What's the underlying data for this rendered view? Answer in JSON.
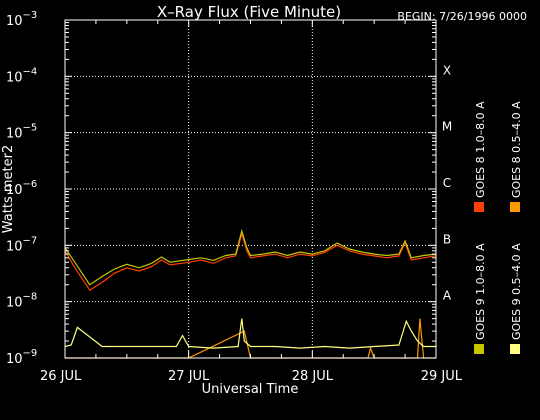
{
  "chart_data": {
    "type": "line",
    "title": "X–Ray Flux (Five Minute)",
    "begin_label": "BEGIN: 7/26/1996 0000",
    "xlabel": "Universal Time",
    "ylabel": "Watts meter2",
    "y_scale": "log",
    "ylim": [
      1e-09,
      0.001
    ],
    "y_ticks": [
      {
        "base": "10",
        "exp": "−9"
      },
      {
        "base": "10",
        "exp": "−8"
      },
      {
        "base": "10",
        "exp": "−7"
      },
      {
        "base": "10",
        "exp": "−6"
      },
      {
        "base": "10",
        "exp": "−5"
      },
      {
        "base": "10",
        "exp": "−4"
      },
      {
        "base": "10",
        "exp": "−3"
      }
    ],
    "x_ticks": [
      "26 JUL",
      "27 JUL",
      "28 JUL",
      "29 JUL"
    ],
    "x_range_days": [
      0,
      3
    ],
    "flare_classes": [
      {
        "label": "A",
        "value": 1e-08
      },
      {
        "label": "B",
        "value": 1e-07
      },
      {
        "label": "C",
        "value": 1e-06
      },
      {
        "label": "M",
        "value": 1e-05
      },
      {
        "label": "X",
        "value": 0.0001
      }
    ],
    "grid": true,
    "legend_position": "right, rotated vertical",
    "series": [
      {
        "name": "GOES 8 1.0–8.0 A",
        "color": "#ff4000",
        "x": [
          0,
          0.08,
          0.2,
          0.3,
          0.4,
          0.5,
          0.6,
          0.7,
          0.78,
          0.85,
          1.0,
          1.1,
          1.2,
          1.3,
          1.38,
          1.43,
          1.47,
          1.5,
          1.6,
          1.7,
          1.8,
          1.9,
          2.0,
          2.1,
          2.2,
          2.3,
          2.4,
          2.5,
          2.6,
          2.7,
          2.75,
          2.8,
          2.9,
          3.0
        ],
        "y": [
          8e-08,
          4e-08,
          1.6e-08,
          2.2e-08,
          3.2e-08,
          4e-08,
          3.5e-08,
          4.2e-08,
          5.5e-08,
          4.5e-08,
          5e-08,
          5.5e-08,
          4.8e-08,
          6e-08,
          6.5e-08,
          1.6e-07,
          8e-08,
          6e-08,
          6.5e-08,
          7e-08,
          6e-08,
          7e-08,
          6.5e-08,
          7.5e-08,
          1e-07,
          8e-08,
          7e-08,
          6.5e-08,
          6e-08,
          6.5e-08,
          1.1e-07,
          5.5e-08,
          6e-08,
          6.5e-08
        ]
      },
      {
        "name": "GOES 8 0.5–4.0 A",
        "color": "#ff9900",
        "x": [
          0,
          0.5,
          1.0,
          1.45,
          1.5,
          2.45,
          2.47,
          2.5,
          2.85,
          2.87,
          2.9,
          3.0
        ],
        "y": [
          1e-09,
          1e-09,
          1e-09,
          3e-09,
          1e-09,
          1e-09,
          1.5e-09,
          1e-09,
          1e-09,
          5e-09,
          1e-09,
          1e-09
        ]
      },
      {
        "name": "GOES 9 1.0–8.0 A",
        "color": "#c8c800",
        "x": [
          0,
          0.08,
          0.2,
          0.3,
          0.4,
          0.5,
          0.6,
          0.7,
          0.78,
          0.85,
          1.0,
          1.1,
          1.2,
          1.3,
          1.38,
          1.43,
          1.47,
          1.5,
          1.6,
          1.7,
          1.8,
          1.9,
          2.0,
          2.1,
          2.2,
          2.3,
          2.4,
          2.5,
          2.6,
          2.7,
          2.75,
          2.8,
          2.9,
          3.0
        ],
        "y": [
          9e-08,
          5e-08,
          2e-08,
          2.8e-08,
          3.8e-08,
          4.6e-08,
          4e-08,
          4.8e-08,
          6.2e-08,
          5e-08,
          5.6e-08,
          6e-08,
          5.4e-08,
          6.6e-08,
          7e-08,
          1.8e-07,
          9e-08,
          6.6e-08,
          7e-08,
          7.6e-08,
          6.6e-08,
          7.6e-08,
          7e-08,
          8e-08,
          1.1e-07,
          8.6e-08,
          7.6e-08,
          7e-08,
          6.6e-08,
          7e-08,
          1.2e-07,
          6e-08,
          6.6e-08,
          7e-08
        ]
      },
      {
        "name": "GOES 9 0.5–4.0 A",
        "color": "#ffff80",
        "x": [
          0,
          0.05,
          0.1,
          0.3,
          0.6,
          0.9,
          0.95,
          1.0,
          1.2,
          1.4,
          1.43,
          1.45,
          1.5,
          1.7,
          1.9,
          2.1,
          2.3,
          2.5,
          2.7,
          2.76,
          2.8,
          2.85,
          2.9,
          3.0
        ],
        "y": [
          1.6e-09,
          1.7e-09,
          3.5e-09,
          1.6e-09,
          1.6e-09,
          1.6e-09,
          2.5e-09,
          1.6e-09,
          1.5e-09,
          1.6e-09,
          5e-09,
          2e-09,
          1.6e-09,
          1.6e-09,
          1.5e-09,
          1.6e-09,
          1.5e-09,
          1.6e-09,
          1.7e-09,
          4.5e-09,
          3e-09,
          2e-09,
          1.6e-09,
          1.6e-09
        ]
      }
    ]
  }
}
